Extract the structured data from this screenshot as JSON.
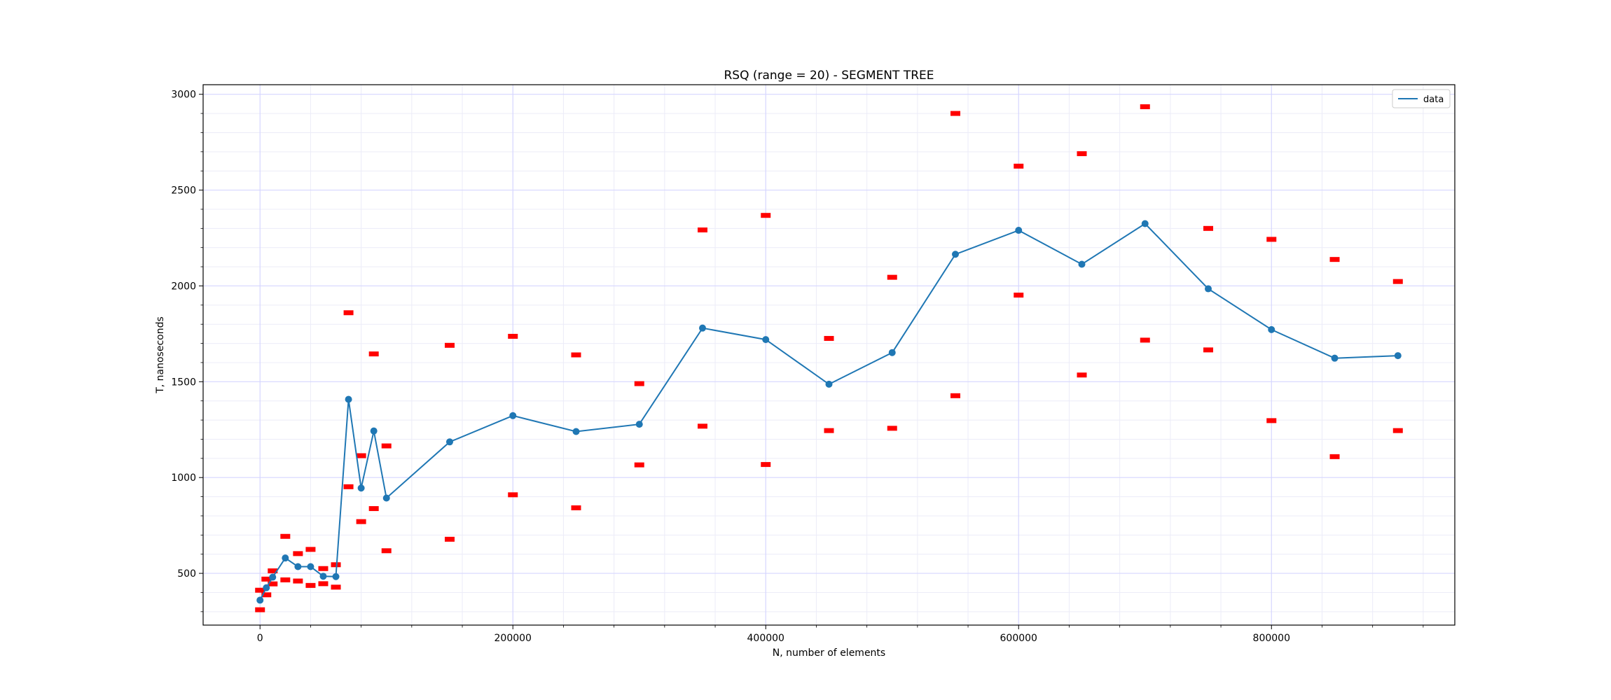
{
  "chart_data": {
    "type": "line",
    "title": "RSQ (range = 20) - SEGMENT TREE",
    "xlabel": "N, number of elements",
    "ylabel": "T, nanoseconds",
    "xlim": [
      -45000,
      945000
    ],
    "ylim": [
      230,
      3050
    ],
    "xticks": [
      0,
      200000,
      400000,
      600000,
      800000
    ],
    "yticks": [
      500,
      1000,
      1500,
      2000,
      2500,
      3000
    ],
    "grid": true,
    "legend": {
      "position": "top-right",
      "entries": [
        "data"
      ]
    },
    "colors": {
      "line": "#1f77b4",
      "error_marker": "#ff0000",
      "grid_major": "#d6d6ff",
      "grid_minor": "#ececf8"
    },
    "series": [
      {
        "name": "data",
        "x": [
          0,
          5000,
          10000,
          20000,
          30000,
          40000,
          50000,
          60000,
          70000,
          80000,
          90000,
          100000,
          150000,
          200000,
          250000,
          300000,
          350000,
          400000,
          450000,
          500000,
          550000,
          600000,
          650000,
          700000,
          750000,
          800000,
          850000,
          900000
        ],
        "values": [
          360,
          425,
          480,
          580,
          535,
          535,
          485,
          483,
          1408,
          945,
          1243,
          893,
          1186,
          1323,
          1240,
          1278,
          1780,
          1720,
          1487,
          1652,
          2165,
          2290,
          2113,
          2325,
          1985,
          1772,
          1623,
          1636
        ],
        "upper": [
          412,
          470,
          513,
          693,
          603,
          625,
          525,
          545,
          1860,
          1114,
          1645,
          1165,
          1690,
          1737,
          1640,
          1490,
          2292,
          2368,
          1726,
          2045,
          2900,
          2625,
          2690,
          2935,
          2300,
          2243,
          2138,
          2023
        ],
        "lower": [
          310,
          388,
          445,
          466,
          460,
          437,
          446,
          428,
          952,
          770,
          838,
          618,
          678,
          910,
          842,
          1066,
          1268,
          1068,
          1245,
          1257,
          1427,
          1952,
          1535,
          1717,
          1666,
          1297,
          1109,
          1245
        ]
      }
    ]
  }
}
